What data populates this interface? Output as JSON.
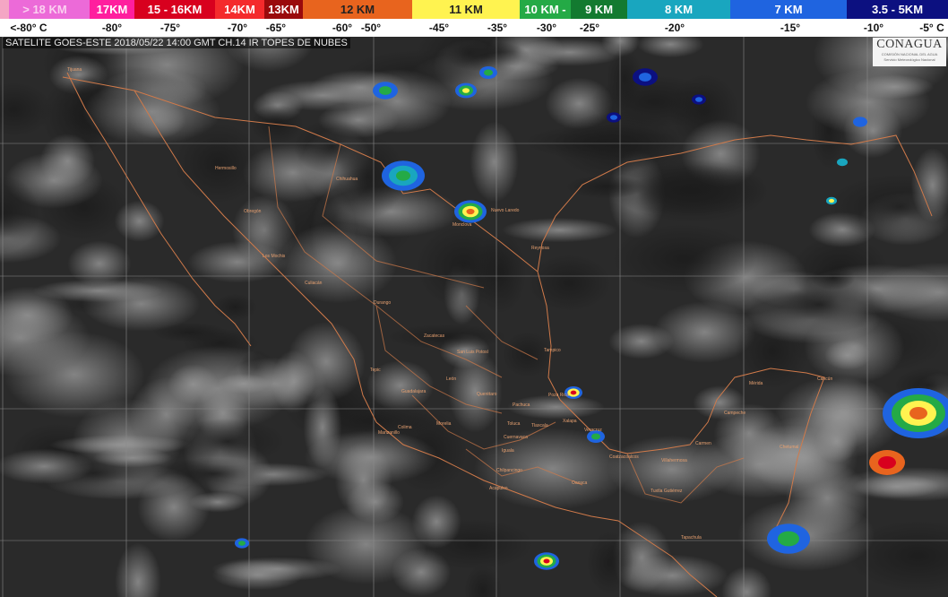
{
  "legend": [
    {
      "label": "> 18 KM",
      "color": "#ec6ad8",
      "text": "#fbd0f0"
    },
    {
      "label": "17KM",
      "color": "#ff1e9e",
      "text": "#ffffff"
    },
    {
      "label": "15 - 16KM",
      "color": "#d8001e",
      "text": "#ffffff"
    },
    {
      "label": "14KM",
      "color": "#f42a2c",
      "text": "#ffffff"
    },
    {
      "label": "13KM",
      "color": "#9a0a0c",
      "text": "#ffffff"
    },
    {
      "label": "12 KM",
      "color": "#e8641e",
      "text": "#222222"
    },
    {
      "label": "11 KM",
      "color": "#fff350",
      "text": "#222222"
    },
    {
      "label": "10 KM -",
      "color": "#24aa46",
      "text": "#ffffff"
    },
    {
      "label": "9 KM",
      "color": "#137a30",
      "text": "#ffffff"
    },
    {
      "label": "8 KM",
      "color": "#19a6bf",
      "text": "#ffffff"
    },
    {
      "label": "7 KM",
      "color": "#1f64e0",
      "text": "#ffffff"
    },
    {
      "label": "3.5 - 5KM",
      "color": "#0c1080",
      "text": "#ffffff"
    }
  ],
  "temperatures": [
    "<-80° C",
    "-80°",
    "-75°",
    "-70°",
    "-65°",
    "-60°",
    "-50°",
    "-45°",
    "-35°",
    "-30°",
    "-25°",
    "-20°",
    "-15°",
    "-10°",
    "-5° C"
  ],
  "caption": "SATELITE GOES-ESTE 2018/05/22 14:00 GMT CH.14 IR TOPES DE NUBES",
  "logo": {
    "title": "CONAGUA",
    "line1": "COMISIÓN NACIONAL DEL AGUA",
    "line2": "Servicio Meteorológico Nacional"
  },
  "cities": [
    "Tijuana",
    "Hermosillo",
    "Chihuahua",
    "Obregón",
    "Los Mochis",
    "Culiacán",
    "Nuevo Laredo",
    "Monclova",
    "Reynosa",
    "Durango",
    "Zacatecas",
    "San Luis Potosí",
    "Tampico",
    "Tepic",
    "León",
    "Guadalajara",
    "Querétaro",
    "Pachuca",
    "Poza Rica",
    "Morelia",
    "Colima",
    "Manzanillo",
    "Toluca",
    "Tlaxcala",
    "Xalapa",
    "Veracruz",
    "Cuernavaca",
    "Iguala",
    "Chilpancingo",
    "Acapulco",
    "Oaxaca",
    "Coatzacoalcos",
    "Villahermosa",
    "Tuxtla Gutiérrez",
    "Tapachula",
    "Carmen",
    "Campeche",
    "Mérida",
    "Cancún",
    "Chetumal"
  ],
  "colors": {
    "borders": "#d07a4a",
    "grid": "#9a9a9a",
    "background": "#2a2a2a"
  }
}
